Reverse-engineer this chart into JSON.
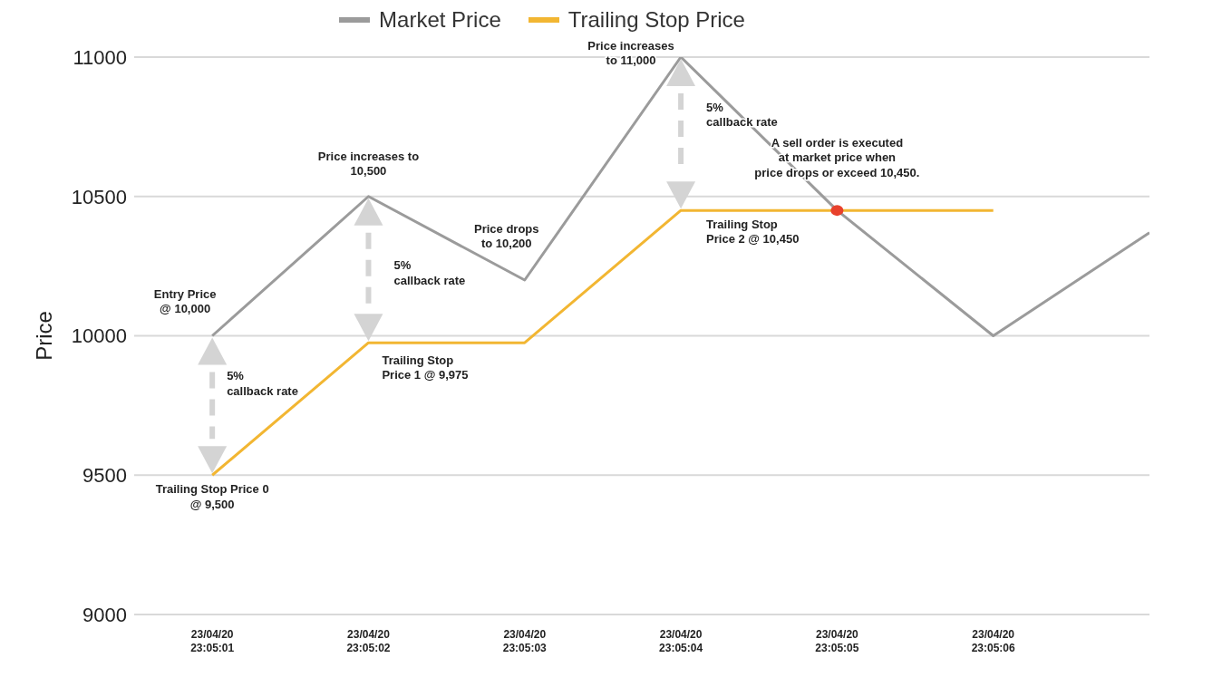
{
  "chart_data": {
    "type": "line",
    "ylabel": "Price",
    "categories": [
      "23/04/20\n23:05:01",
      "23/04/20\n23:05:02",
      "23/04/20\n23:05:03",
      "23/04/20\n23:05:04",
      "23/04/20\n23:05:05",
      "23/04/20\n23:05:06",
      null
    ],
    "series": [
      {
        "name": "Market Price",
        "color": "#9b9b9b",
        "values": [
          10000,
          10500,
          10200,
          11000,
          10450,
          10000,
          10370
        ]
      },
      {
        "name": "Trailing Stop Price",
        "color": "#f2b632",
        "values": [
          9500,
          9975,
          9975,
          10450,
          10450,
          10450,
          null
        ]
      },
      {
        "type": "scatter",
        "color": "#e8412c",
        "x": [
          "23/04/20\n23:05:05"
        ],
        "values": [
          10450
        ]
      }
    ],
    "ylim": [
      9000,
      11000
    ],
    "yticks": [
      9000,
      9500,
      10000,
      10500,
      11000
    ],
    "grid": "y",
    "legend": "top",
    "line_style": "solid",
    "annotations": [
      {
        "text": "Entry Price\n@ 10,000",
        "x": "23/04/20\n23:05:01",
        "y": 10000
      },
      "5%\ncallback rate",
      {
        "text": "Trailing Stop Price 0\n@ 9,500",
        "x": "23/04/20\n23:05:01",
        "y": 9500
      },
      {
        "text": "Price increases to\n10,500",
        "x": "23/04/20\n23:05:02",
        "y": 10500
      },
      "5%\ncallback rate",
      {
        "text": "Trailing Stop\nPrice 1 @ 9,975",
        "x": "23/04/20\n23:05:02",
        "y": 9975
      },
      {
        "text": "Price drops\nto 10,200",
        "x": "23/04/20\n23:05:03",
        "y": 10200
      },
      {
        "text": "Price increases\nto 11,000",
        "x": "23/04/20\n23:05:04",
        "y": 11000
      },
      "5%\ncallback rate",
      {
        "text": "Trailing Stop\nPrice 2 @ 10,450",
        "x": "23/04/20\n23:05:04",
        "y": 10450
      },
      {
        "text": "A sell order is executed\nat market price when\nprice drops or exceed 10,450.",
        "x": "23/04/20\n23:05:05",
        "y": 10450
      }
    ]
  }
}
